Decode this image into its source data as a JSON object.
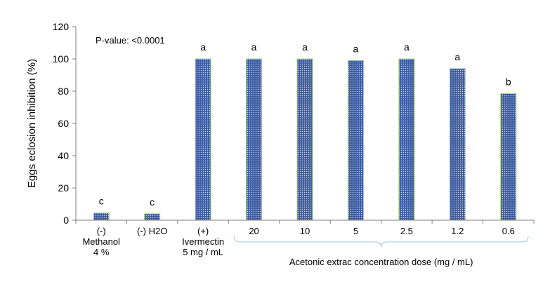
{
  "chart_data": {
    "type": "bar",
    "ylabel": "Eggs eclosion inhibition  (%)",
    "ylim": [
      0,
      120
    ],
    "yticks": [
      0,
      20,
      40,
      60,
      80,
      100,
      120
    ],
    "annotation": "P-value: <0.0001",
    "group_label": "Acetonic extrac concentration dose (mg / mL)",
    "bar_color": "#3b5aa0",
    "bar_edge_color": "#a9d47e",
    "categories": [
      {
        "label": [
          "(-)",
          "Methanol",
          "4 %"
        ],
        "value": 4.5,
        "letter": "c"
      },
      {
        "label": [
          "(-) H2O"
        ],
        "value": 4,
        "letter": "c"
      },
      {
        "label": [
          "(+)",
          "Ivermectin",
          "5 mg / mL"
        ],
        "value": 100,
        "letter": "a"
      },
      {
        "label": [
          "20"
        ],
        "value": 100,
        "letter": "a"
      },
      {
        "label": [
          "10"
        ],
        "value": 100,
        "letter": "a"
      },
      {
        "label": [
          "5"
        ],
        "value": 99,
        "letter": "a"
      },
      {
        "label": [
          "2.5"
        ],
        "value": 100,
        "letter": "a"
      },
      {
        "label": [
          "1.2"
        ],
        "value": 94,
        "letter": "a"
      },
      {
        "label": [
          "0.6"
        ],
        "value": 78.5,
        "letter": "b"
      }
    ],
    "bracket_range": [
      3,
      8
    ]
  }
}
